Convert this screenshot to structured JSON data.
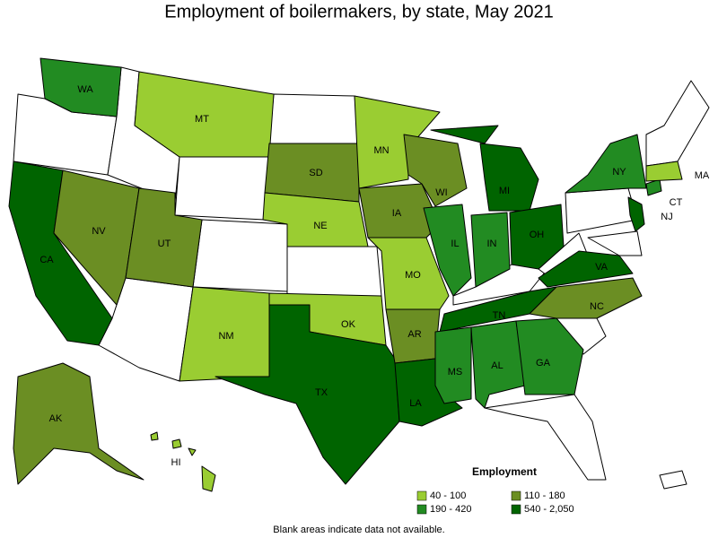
{
  "title": "Employment of boilermakers, by state, May 2021",
  "legend": {
    "title": "Employment",
    "items": [
      {
        "label": "40 - 100",
        "color": "#9acd32"
      },
      {
        "label": "110 - 180",
        "color": "#6b8e23"
      },
      {
        "label": "190 - 420",
        "color": "#228b22"
      },
      {
        "label": "540 - 2,050",
        "color": "#006400"
      }
    ]
  },
  "states": [
    {
      "label": "WA",
      "employment": "190 - 420"
    },
    {
      "label": "CA",
      "employment": "540 - 2,050"
    },
    {
      "label": "NV",
      "employment": "110 - 180"
    },
    {
      "label": "MT",
      "employment": "40 - 100"
    },
    {
      "label": "UT",
      "employment": "110 - 180"
    },
    {
      "label": "NM",
      "employment": "40 - 100"
    },
    {
      "label": "SD",
      "employment": "110 - 180"
    },
    {
      "label": "NE",
      "employment": "40 - 100"
    },
    {
      "label": "OK",
      "employment": "40 - 100"
    },
    {
      "label": "TX",
      "employment": "540 - 2,050"
    },
    {
      "label": "MN",
      "employment": "40 - 100"
    },
    {
      "label": "IA",
      "employment": "110 - 180"
    },
    {
      "label": "MO",
      "employment": "40 - 100"
    },
    {
      "label": "AR",
      "employment": "110 - 180"
    },
    {
      "label": "LA",
      "employment": "540 - 2,050"
    },
    {
      "label": "WI",
      "employment": "110 - 180"
    },
    {
      "label": "IL",
      "employment": "190 - 420"
    },
    {
      "label": "MI",
      "employment": "540 - 2,050"
    },
    {
      "label": "IN",
      "employment": "190 - 420"
    },
    {
      "label": "OH",
      "employment": "540 - 2,050"
    },
    {
      "label": "TN",
      "employment": "540 - 2,050"
    },
    {
      "label": "MS",
      "employment": "190 - 420"
    },
    {
      "label": "AL",
      "employment": "190 - 420"
    },
    {
      "label": "GA",
      "employment": "190 - 420"
    },
    {
      "label": "NC",
      "employment": "110 - 180"
    },
    {
      "label": "VA",
      "employment": "540 - 2,050"
    },
    {
      "label": "NY",
      "employment": "190 - 420"
    },
    {
      "label": "NJ",
      "employment": "540 - 2,050"
    },
    {
      "label": "CT",
      "employment": "190 - 420"
    },
    {
      "label": "MA",
      "employment": "40 - 100"
    },
    {
      "label": "AK",
      "employment": "110 - 180"
    },
    {
      "label": "HI",
      "employment": "40 - 100"
    }
  ],
  "footnote": "Blank areas indicate data not available."
}
